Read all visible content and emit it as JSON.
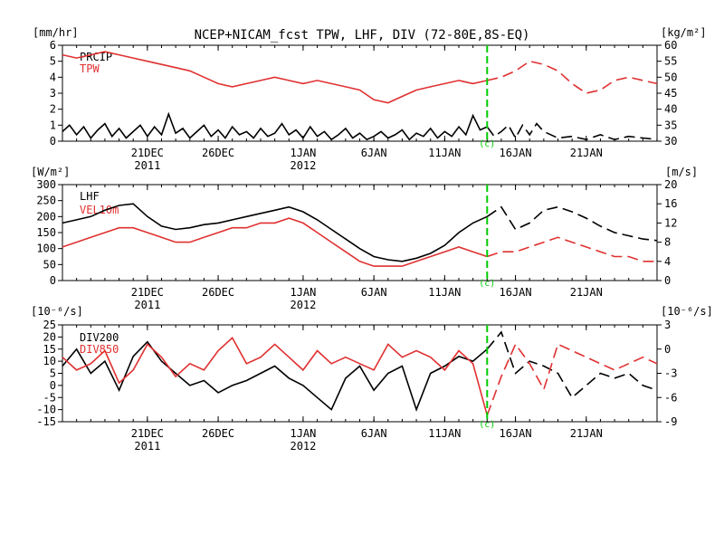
{
  "title": "NCEP+NICAM_fcst TPW, LHF, DIV (72-80E,8S-EQ)",
  "forecast_marker": {
    "label": "(c)",
    "color": "#00cc00"
  },
  "x_axis": {
    "day_range": [
      0,
      42
    ],
    "forecast_start_day": 30,
    "ticks": [
      {
        "day": 6,
        "label": "21DEC",
        "sub": "2011"
      },
      {
        "day": 11,
        "label": "26DEC",
        "sub": ""
      },
      {
        "day": 17,
        "label": "1JAN",
        "sub": "2012"
      },
      {
        "day": 22,
        "label": "6JAN",
        "sub": ""
      },
      {
        "day": 27,
        "label": "11JAN",
        "sub": ""
      },
      {
        "day": 32,
        "label": "16JAN",
        "sub": ""
      },
      {
        "day": 37,
        "label": "21JAN",
        "sub": ""
      }
    ]
  },
  "chart_data": [
    {
      "type": "line",
      "left_unit": "[mm/hr]",
      "right_unit": "[kg/m²]",
      "left_ticks": [
        "0",
        "1",
        "2",
        "3",
        "4",
        "5",
        "6"
      ],
      "right_ticks": [
        "30",
        "35",
        "40",
        "45",
        "50",
        "55",
        "60"
      ],
      "ylim_left": [
        0,
        6
      ],
      "ylim_right": [
        30,
        60
      ],
      "legend": [
        "PRCIP",
        "TPW"
      ],
      "series": [
        {
          "name": "PRCIP",
          "axis": "left",
          "color": "#000000",
          "x": [
            0,
            0.5,
            1,
            1.5,
            2,
            2.5,
            3,
            3.5,
            4,
            4.5,
            5,
            5.5,
            6,
            6.5,
            7,
            7.5,
            8,
            8.5,
            9,
            9.5,
            10,
            10.5,
            11,
            11.5,
            12,
            12.5,
            13,
            13.5,
            14,
            14.5,
            15,
            15.5,
            16,
            16.5,
            17,
            17.5,
            18,
            18.5,
            19,
            19.5,
            20,
            20.5,
            21,
            21.5,
            22,
            22.5,
            23,
            23.5,
            24,
            24.5,
            25,
            25.5,
            26,
            26.5,
            27,
            27.5,
            28,
            28.5,
            29,
            29.5,
            30,
            30.5,
            31,
            31.5,
            32,
            32.5,
            33,
            33.5,
            34,
            35,
            36,
            37,
            38,
            39,
            40,
            41,
            42
          ],
          "y": [
            0.6,
            1.0,
            0.4,
            0.9,
            0.2,
            0.7,
            1.1,
            0.3,
            0.8,
            0.2,
            0.6,
            1.0,
            0.3,
            0.9,
            0.4,
            1.7,
            0.5,
            0.8,
            0.2,
            0.6,
            1.0,
            0.3,
            0.7,
            0.2,
            0.9,
            0.4,
            0.6,
            0.2,
            0.8,
            0.3,
            0.5,
            1.1,
            0.4,
            0.7,
            0.2,
            0.9,
            0.3,
            0.6,
            0.1,
            0.4,
            0.8,
            0.2,
            0.5,
            0.1,
            0.3,
            0.6,
            0.2,
            0.4,
            0.7,
            0.1,
            0.5,
            0.3,
            0.8,
            0.2,
            0.6,
            0.3,
            0.9,
            0.4,
            1.6,
            0.7,
            0.9,
            0.3,
            0.6,
            1.0,
            0.2,
            1.0,
            0.4,
            1.1,
            0.6,
            0.2,
            0.3,
            0.1,
            0.4,
            0.1,
            0.3,
            0.2,
            0.1
          ]
        },
        {
          "name": "TPW",
          "axis": "right",
          "color": "#e03030",
          "x": [
            0,
            1,
            2,
            3,
            4,
            5,
            6,
            7,
            8,
            9,
            10,
            11,
            12,
            13,
            14,
            15,
            16,
            17,
            18,
            19,
            20,
            21,
            22,
            23,
            24,
            25,
            26,
            27,
            28,
            29,
            30,
            31,
            32,
            33,
            34,
            35,
            36,
            37,
            38,
            39,
            40,
            41,
            42
          ],
          "y": [
            57,
            56,
            57,
            58,
            57,
            56,
            55,
            54,
            53,
            52,
            50,
            48,
            47,
            48,
            49,
            50,
            49,
            48,
            49,
            48,
            47,
            46,
            43,
            42,
            44,
            46,
            47,
            48,
            49,
            48,
            49,
            50,
            52,
            55,
            54,
            52,
            48,
            45,
            46,
            49,
            50,
            49,
            48
          ]
        }
      ]
    },
    {
      "type": "line",
      "left_unit": "[W/m²]",
      "right_unit": "[m/s]",
      "left_ticks": [
        "0",
        "50",
        "100",
        "150",
        "200",
        "250",
        "300"
      ],
      "right_ticks": [
        "0",
        "4",
        "8",
        "12",
        "16",
        "20"
      ],
      "ylim_left": [
        0,
        300
      ],
      "ylim_right": [
        0,
        20
      ],
      "legend": [
        "LHF",
        "VEL10m"
      ],
      "series": [
        {
          "name": "LHF",
          "axis": "left",
          "color": "#000000",
          "x": [
            0,
            1,
            2,
            3,
            4,
            5,
            6,
            7,
            8,
            9,
            10,
            11,
            12,
            13,
            14,
            15,
            16,
            17,
            18,
            19,
            20,
            21,
            22,
            23,
            24,
            25,
            26,
            27,
            28,
            29,
            30,
            31,
            32,
            33,
            34,
            35,
            36,
            37,
            38,
            39,
            40,
            41,
            42
          ],
          "y": [
            180,
            190,
            200,
            220,
            235,
            240,
            200,
            170,
            160,
            165,
            175,
            180,
            190,
            200,
            210,
            220,
            230,
            215,
            190,
            160,
            130,
            100,
            75,
            65,
            60,
            70,
            85,
            110,
            150,
            180,
            200,
            230,
            160,
            180,
            220,
            230,
            215,
            195,
            170,
            150,
            140,
            130,
            125
          ]
        },
        {
          "name": "VEL10m",
          "axis": "right",
          "color": "#e03030",
          "x": [
            0,
            1,
            2,
            3,
            4,
            5,
            6,
            7,
            8,
            9,
            10,
            11,
            12,
            13,
            14,
            15,
            16,
            17,
            18,
            19,
            20,
            21,
            22,
            23,
            24,
            25,
            26,
            27,
            28,
            29,
            30,
            31,
            32,
            33,
            34,
            35,
            36,
            37,
            38,
            39,
            40,
            41,
            42
          ],
          "y": [
            7,
            8,
            9,
            10,
            11,
            11,
            10,
            9,
            8,
            8,
            9,
            10,
            11,
            11,
            12,
            12,
            13,
            12,
            10,
            8,
            6,
            4,
            3,
            3,
            3,
            4,
            5,
            6,
            7,
            6,
            5,
            6,
            6,
            7,
            8,
            9,
            8,
            7,
            6,
            5,
            5,
            4,
            4
          ]
        }
      ]
    },
    {
      "type": "line",
      "left_unit": "[10⁻⁶/s]",
      "right_unit": "[10⁻⁶/s]",
      "left_ticks": [
        "-15",
        "-10",
        "-5",
        "0",
        "5",
        "10",
        "15",
        "20",
        "25"
      ],
      "right_ticks": [
        "-9",
        "-6",
        "-3",
        "0",
        "3"
      ],
      "ylim_left": [
        -15,
        25
      ],
      "ylim_right": [
        -10,
        5
      ],
      "legend": [
        "DIV200",
        "DIV850"
      ],
      "series": [
        {
          "name": "DIV200",
          "axis": "left",
          "color": "#000000",
          "x": [
            0,
            1,
            2,
            3,
            4,
            5,
            6,
            7,
            8,
            9,
            10,
            11,
            12,
            13,
            14,
            15,
            16,
            17,
            18,
            19,
            20,
            21,
            22,
            23,
            24,
            25,
            26,
            27,
            28,
            29,
            30,
            31,
            32,
            33,
            34,
            35,
            36,
            37,
            38,
            39,
            40,
            41,
            42
          ],
          "y": [
            8,
            15,
            5,
            10,
            -2,
            12,
            18,
            10,
            5,
            0,
            2,
            -3,
            0,
            2,
            5,
            8,
            3,
            0,
            -5,
            -10,
            3,
            8,
            -2,
            5,
            8,
            -10,
            5,
            8,
            12,
            10,
            15,
            22,
            5,
            10,
            8,
            5,
            -5,
            0,
            5,
            3,
            5,
            0,
            -2
          ]
        },
        {
          "name": "DIV850",
          "axis": "right",
          "color": "#e03030",
          "x": [
            0,
            1,
            2,
            3,
            4,
            5,
            6,
            7,
            8,
            9,
            10,
            11,
            12,
            13,
            14,
            15,
            16,
            17,
            18,
            19,
            20,
            21,
            22,
            23,
            24,
            25,
            26,
            27,
            28,
            29,
            30,
            31,
            32,
            33,
            34,
            35,
            36,
            37,
            38,
            39,
            40,
            41,
            42
          ],
          "y": [
            0,
            -2,
            -1,
            1,
            -4,
            -2,
            2,
            0,
            -3,
            -1,
            -2,
            1,
            3,
            -1,
            0,
            2,
            0,
            -2,
            1,
            -1,
            0,
            -1,
            -2,
            2,
            0,
            1,
            0,
            -2,
            1,
            -1,
            -9,
            -3,
            2,
            -1,
            -5,
            2,
            1,
            0,
            -1,
            -2,
            -1,
            0,
            -1
          ]
        }
      ]
    }
  ]
}
